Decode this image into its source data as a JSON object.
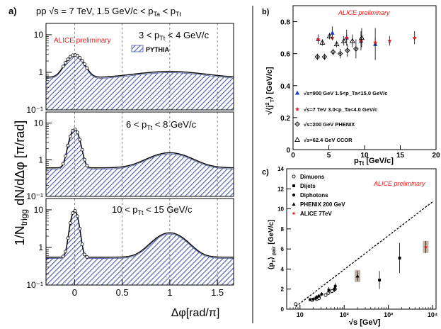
{
  "colors": {
    "hatch": "#4a5aa8",
    "alice_red": "#e02020",
    "blue_marker": "#1f3fbf",
    "red_marker": "#d91a1a",
    "axis": "#000000"
  },
  "chart_data": [
    {
      "id": "a",
      "type": "line",
      "panel_label": "a)",
      "title_text": "pp √s = 7 TeV, 1.5 GeV/c < p_Ta < p_Tt",
      "ylabel": "1/N_trigg dN/dΔφ [π/rad]",
      "xlabel": "Δφ[rad/π]",
      "xlim": [
        -0.3,
        1.67
      ],
      "x_ticks": [
        "0",
        "0.5",
        "1",
        "1.5"
      ],
      "log_y": true,
      "watermark": "ALICE preliminary",
      "legend_label": "PYTHIA",
      "subpanels": [
        {
          "label": "3 < p_Tt < 4 GeV/c",
          "ylim": [
            0.1,
            20
          ],
          "y_ticks": [
            "10",
            "1",
            "10⁻¹"
          ],
          "baseline": 0.7,
          "near_peak": 2.2,
          "near_width": 0.08,
          "away_peak": 0.35,
          "away_width": 0.35
        },
        {
          "label": "6 < p_Tt < 8 GeV/c",
          "ylim": [
            0.1,
            20
          ],
          "y_ticks": [
            "10",
            "1",
            "10⁻¹"
          ],
          "baseline": 0.6,
          "near_peak": 6.2,
          "near_width": 0.045,
          "away_peak": 0.95,
          "away_width": 0.2
        },
        {
          "label": "10 < p_Tt < 15 GeV/c",
          "ylim": [
            0.1,
            20
          ],
          "y_ticks": [
            "10",
            "1",
            "10⁻¹"
          ],
          "baseline": 0.55,
          "near_peak": 9.0,
          "near_width": 0.035,
          "away_peak": 1.9,
          "away_width": 0.15
        }
      ]
    },
    {
      "id": "b",
      "type": "scatter",
      "panel_label": "b)",
      "watermark": "ALICE preliminary",
      "ylabel": "√⟨j_T²⟩ [GeV/c]",
      "xlabel": "p_Tt [GeV/c]",
      "xlim": [
        0,
        20
      ],
      "ylim": [
        0,
        0.9
      ],
      "x_ticks": [
        "0",
        "5",
        "10",
        "15",
        "20"
      ],
      "y_ticks": [
        "0",
        "0.2",
        "0.4",
        "0.6",
        "0.8"
      ],
      "legend": [
        "√s=900 GeV 1.5<p_Ta<15.0 GeV/c",
        "√s=7 TeV 3.0<p_Ta<4.0 GeV/c",
        "√s=200 GeV PHENIX",
        "√s=62.4 GeV CCOR"
      ],
      "series": [
        {
          "marker": "triangle-filled",
          "points": [
            [
              3.5,
              0.69,
              0.03
            ],
            [
              5.5,
              0.73,
              0.04
            ],
            [
              7.5,
              0.7,
              0.05
            ],
            [
              9.5,
              0.68,
              0.06
            ],
            [
              11.5,
              0.66,
              0.1
            ]
          ]
        },
        {
          "marker": "star",
          "points": [
            [
              3.5,
              0.69,
              0.01
            ],
            [
              5.5,
              0.7,
              0.015
            ],
            [
              7.5,
              0.7,
              0.02
            ],
            [
              9.5,
              0.68,
              0.02
            ],
            [
              11.5,
              0.67,
              0.03
            ],
            [
              13.5,
              0.68,
              0.03
            ],
            [
              17,
              0.7,
              0.04
            ]
          ]
        },
        {
          "marker": "diamond-open",
          "points": [
            [
              3.4,
              0.58,
              0.02
            ],
            [
              4.4,
              0.58,
              0.02
            ],
            [
              5.6,
              0.61,
              0.02
            ],
            [
              6.6,
              0.6,
              0.03
            ],
            [
              7.6,
              0.62,
              0.04
            ],
            [
              8.8,
              0.63,
              0.06
            ]
          ]
        },
        {
          "marker": "triangle-open",
          "points": [
            [
              4.1,
              0.67,
              0.02
            ],
            [
              5.1,
              0.71,
              0.02
            ],
            [
              6.1,
              0.66,
              0.02
            ],
            [
              7.1,
              0.68,
              0.03
            ],
            [
              8.3,
              0.68,
              0.04
            ],
            [
              9.6,
              0.7,
              0.06
            ]
          ]
        }
      ]
    },
    {
      "id": "c",
      "type": "scatter",
      "panel_label": "c)",
      "watermark": "ALICE preliminary",
      "ylabel": "⟨p_T⟩_pair [GeV/c]",
      "xlabel": "√s [GeV]",
      "log_x": true,
      "xlim": [
        5,
        12000
      ],
      "ylim": [
        0,
        14
      ],
      "x_ticks": [
        "10",
        "10²",
        "10³",
        "10⁴"
      ],
      "y_ticks": [
        "0",
        "2",
        "4",
        "6",
        "8",
        "10",
        "12",
        "14"
      ],
      "legend": [
        "Dimuons",
        "Dijets",
        "Diphotons",
        "PHENIX 200 GeV",
        "ALICE 7TeV"
      ],
      "fit_line": [
        [
          8,
          0.25
        ],
        [
          10000,
          10.7
        ]
      ],
      "series": [
        {
          "marker": "circle-open",
          "points": [
            [
              8,
              0.5,
              0.1
            ],
            [
              19,
              0.9,
              0.1
            ],
            [
              24,
              1.0,
              0.1
            ],
            [
              27,
              1.1,
              0.1
            ],
            [
              38,
              1.4,
              0.15
            ],
            [
              44,
              1.6,
              0.15
            ],
            [
              53,
              1.8,
              0.2
            ],
            [
              62,
              2.0,
              0.2
            ]
          ]
        },
        {
          "marker": "square-filled",
          "points": [
            [
              17,
              0.95,
              0.15
            ],
            [
              23,
              1.1,
              0.2
            ],
            [
              27,
              1.3,
              0.2
            ],
            [
              45,
              1.9,
              0.3
            ],
            [
              60,
              2.0,
              0.3
            ],
            [
              630,
              2.9,
              0.9
            ],
            [
              1800,
              5.1,
              1.5
            ]
          ]
        },
        {
          "marker": "circle-filled",
          "points": [
            [
              20,
              1.0,
              0.15
            ],
            [
              24,
              1.2,
              0.2
            ],
            [
              31,
              1.5,
              0.2
            ],
            [
              63,
              2.3,
              0.3
            ]
          ]
        },
        {
          "marker": "triangle-filled",
          "points": [
            [
              200,
              3.3,
              0.5
            ]
          ]
        },
        {
          "marker": "star",
          "points": [
            [
              7000,
              6.2,
              0.6
            ]
          ]
        }
      ]
    }
  ]
}
